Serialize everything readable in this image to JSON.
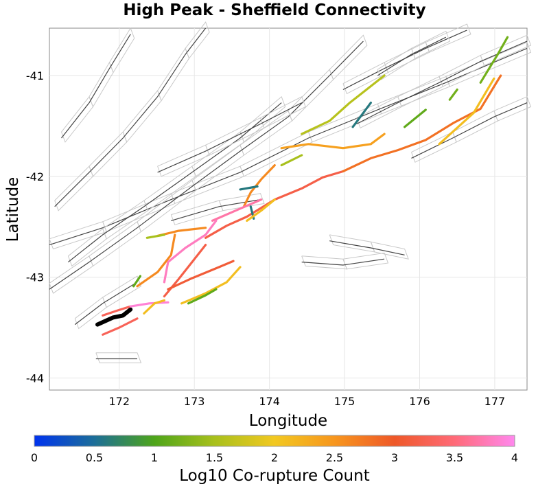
{
  "chart_data": {
    "type": "map",
    "title": "High Peak - Sheffield Connectivity",
    "xlabel": "Longitude",
    "ylabel": "Latitude",
    "xlim": [
      171.07,
      177.43
    ],
    "ylim": [
      -44.12,
      -40.53
    ],
    "xticks": [
      172,
      173,
      174,
      175,
      176,
      177
    ],
    "yticks": [
      -41,
      -42,
      -43,
      -44
    ],
    "xtick_labels": [
      "172",
      "173",
      "174",
      "175",
      "176",
      "177"
    ],
    "ytick_labels": [
      "-41",
      "-42",
      "-43",
      "-44"
    ],
    "grid": true,
    "colorbar": {
      "label": "Log10 Co-rupture Count",
      "range": [
        0,
        4
      ],
      "ticks": [
        "0",
        "0.5",
        "1",
        "1.5",
        "2",
        "2.5",
        "3",
        "3.5",
        "4"
      ],
      "stops": [
        {
          "v": 0,
          "c": "#0033ee"
        },
        {
          "v": 0.5,
          "c": "#1c6e98"
        },
        {
          "v": 1,
          "c": "#4ea51a"
        },
        {
          "v": 1.5,
          "c": "#a8c01c"
        },
        {
          "v": 2,
          "c": "#f2c820"
        },
        {
          "v": 2.5,
          "c": "#f7961e"
        },
        {
          "v": 3,
          "c": "#ee5828"
        },
        {
          "v": 3.5,
          "c": "#ff6a78"
        },
        {
          "v": 4,
          "c": "#ff88ee"
        }
      ],
      "source_color": "#000000"
    },
    "ruptures": [
      {
        "v": "source",
        "pts": [
          [
            171.71,
            -43.47
          ],
          [
            171.92,
            -43.4
          ],
          [
            172.05,
            -43.38
          ],
          [
            172.15,
            -43.32
          ]
        ]
      },
      {
        "v": 3.3,
        "pts": [
          [
            171.78,
            -43.57
          ],
          [
            172.0,
            -43.5
          ],
          [
            172.24,
            -43.41
          ]
        ]
      },
      {
        "v": 3.3,
        "pts": [
          [
            171.78,
            -43.38
          ],
          [
            171.98,
            -43.33
          ],
          [
            172.15,
            -43.29
          ]
        ]
      },
      {
        "v": 3.9,
        "pts": [
          [
            172.15,
            -43.29
          ],
          [
            172.4,
            -43.26
          ],
          [
            172.65,
            -43.25
          ]
        ]
      },
      {
        "v": 3.2,
        "pts": [
          [
            173.15,
            -42.61
          ],
          [
            173.43,
            -42.49
          ],
          [
            173.7,
            -42.4
          ],
          [
            174.07,
            -42.23
          ],
          [
            174.43,
            -42.12
          ],
          [
            174.71,
            -42.01
          ],
          [
            174.98,
            -41.95
          ]
        ]
      },
      {
        "v": 2.6,
        "pts": [
          [
            172.51,
            -42.59
          ],
          [
            172.79,
            -42.54
          ],
          [
            173.15,
            -42.51
          ]
        ]
      },
      {
        "v": 2.8,
        "pts": [
          [
            174.98,
            -41.95
          ],
          [
            175.35,
            -41.82
          ],
          [
            175.71,
            -41.74
          ],
          [
            176.08,
            -41.64
          ],
          [
            176.45,
            -41.47
          ],
          [
            176.81,
            -41.33
          ],
          [
            177.08,
            -41.0
          ]
        ]
      },
      {
        "v": 2.4,
        "pts": [
          [
            174.16,
            -41.72
          ],
          [
            174.52,
            -41.68
          ],
          [
            174.98,
            -41.72
          ],
          [
            175.35,
            -41.68
          ],
          [
            175.53,
            -41.58
          ]
        ]
      },
      {
        "v": 2.1,
        "pts": [
          [
            176.26,
            -41.68
          ],
          [
            176.72,
            -41.37
          ],
          [
            176.99,
            -41.03
          ]
        ]
      },
      {
        "v": 1.6,
        "pts": [
          [
            174.43,
            -41.58
          ],
          [
            174.8,
            -41.45
          ],
          [
            175.07,
            -41.27
          ],
          [
            175.53,
            -41.0
          ]
        ]
      },
      {
        "v": 1.2,
        "pts": [
          [
            176.81,
            -41.07
          ],
          [
            177.04,
            -40.79
          ],
          [
            177.17,
            -40.62
          ]
        ]
      },
      {
        "v": 1.1,
        "pts": [
          [
            175.8,
            -41.51
          ],
          [
            176.08,
            -41.34
          ]
        ]
      },
      {
        "v": 0.6,
        "pts": [
          [
            175.11,
            -41.51
          ],
          [
            175.35,
            -41.27
          ]
        ]
      },
      {
        "v": 2.6,
        "pts": [
          [
            174.07,
            -41.89
          ],
          [
            173.89,
            -42.03
          ],
          [
            173.75,
            -42.16
          ],
          [
            173.66,
            -42.3
          ]
        ]
      },
      {
        "v": 3.7,
        "pts": [
          [
            173.24,
            -42.44
          ],
          [
            173.61,
            -42.32
          ],
          [
            173.89,
            -42.23
          ]
        ]
      },
      {
        "v": 3.2,
        "pts": [
          [
            172.6,
            -43.19
          ],
          [
            172.79,
            -43.02
          ],
          [
            172.97,
            -42.85
          ],
          [
            173.15,
            -42.68
          ]
        ]
      },
      {
        "v": 2.6,
        "pts": [
          [
            172.24,
            -43.09
          ],
          [
            172.51,
            -42.95
          ],
          [
            172.69,
            -42.78
          ],
          [
            172.74,
            -42.58
          ]
        ]
      },
      {
        "v": 3.1,
        "pts": [
          [
            172.65,
            -43.12
          ],
          [
            172.97,
            -43.01
          ],
          [
            173.33,
            -42.9
          ],
          [
            173.52,
            -42.84
          ]
        ]
      },
      {
        "v": 3.8,
        "pts": [
          [
            172.6,
            -43.05
          ],
          [
            172.65,
            -42.85
          ],
          [
            172.88,
            -42.71
          ],
          [
            173.15,
            -42.58
          ],
          [
            173.29,
            -42.44
          ]
        ]
      },
      {
        "v": 2.1,
        "pts": [
          [
            172.83,
            -43.26
          ],
          [
            173.15,
            -43.16
          ],
          [
            173.43,
            -43.05
          ],
          [
            173.61,
            -42.9
          ]
        ]
      },
      {
        "v": 1.1,
        "pts": [
          [
            172.92,
            -43.26
          ],
          [
            173.15,
            -43.18
          ],
          [
            173.29,
            -43.12
          ]
        ]
      },
      {
        "v": 1.1,
        "pts": [
          [
            172.19,
            -43.09
          ],
          [
            172.28,
            -42.99
          ]
        ]
      },
      {
        "v": 1.5,
        "pts": [
          [
            172.37,
            -42.61
          ],
          [
            172.6,
            -42.58
          ]
        ]
      },
      {
        "v": 2.1,
        "pts": [
          [
            172.33,
            -43.36
          ],
          [
            172.47,
            -43.26
          ],
          [
            172.6,
            -43.23
          ]
        ]
      },
      {
        "v": 0.6,
        "pts": [
          [
            173.61,
            -42.13
          ],
          [
            173.84,
            -42.1
          ]
        ]
      },
      {
        "v": 0.6,
        "pts": [
          [
            173.75,
            -42.3
          ],
          [
            173.79,
            -42.42
          ]
        ]
      },
      {
        "v": 2.1,
        "pts": [
          [
            173.7,
            -42.44
          ],
          [
            173.89,
            -42.34
          ],
          [
            174.07,
            -42.23
          ]
        ]
      },
      {
        "v": 1.5,
        "pts": [
          [
            174.16,
            -41.89
          ],
          [
            174.43,
            -41.79
          ]
        ]
      },
      {
        "v": 1.2,
        "pts": [
          [
            176.4,
            -41.24
          ],
          [
            176.5,
            -41.14
          ]
        ]
      }
    ],
    "faults": [
      [
        [
          171.07,
          -42.68
        ],
        [
          171.78,
          -42.51
        ],
        [
          172.69,
          -42.23
        ],
        [
          173.61,
          -41.96
        ],
        [
          174.52,
          -41.62
        ],
        [
          175.44,
          -41.34
        ],
        [
          176.35,
          -41.07
        ],
        [
          177.43,
          -40.73
        ]
      ],
      [
        [
          171.07,
          -43.12
        ],
        [
          171.6,
          -42.85
        ],
        [
          172.24,
          -42.51
        ],
        [
          172.97,
          -42.1
        ],
        [
          173.61,
          -41.75
        ],
        [
          174.25,
          -41.41
        ],
        [
          174.8,
          -41.0
        ],
        [
          175.25,
          -40.66
        ]
      ],
      [
        [
          171.14,
          -42.3
        ],
        [
          171.6,
          -41.96
        ],
        [
          172.05,
          -41.62
        ],
        [
          172.51,
          -41.21
        ],
        [
          172.88,
          -40.79
        ],
        [
          173.15,
          -40.53
        ]
      ],
      [
        [
          171.23,
          -41.62
        ],
        [
          171.6,
          -41.27
        ],
        [
          171.87,
          -40.93
        ],
        [
          172.15,
          -40.59
        ]
      ],
      [
        [
          171.32,
          -42.85
        ],
        [
          171.78,
          -42.58
        ],
        [
          172.33,
          -42.3
        ],
        [
          172.97,
          -41.96
        ],
        [
          173.61,
          -41.62
        ],
        [
          174.16,
          -41.27
        ]
      ],
      [
        [
          174.98,
          -41.14
        ],
        [
          175.53,
          -40.93
        ],
        [
          176.08,
          -40.73
        ],
        [
          176.63,
          -40.55
        ]
      ],
      [
        [
          175.16,
          -41.48
        ],
        [
          175.71,
          -41.27
        ],
        [
          176.26,
          -41.07
        ],
        [
          176.81,
          -40.86
        ],
        [
          177.43,
          -40.66
        ]
      ],
      [
        [
          175.89,
          -41.82
        ],
        [
          176.44,
          -41.62
        ],
        [
          176.99,
          -41.41
        ],
        [
          177.43,
          -41.27
        ]
      ],
      [
        [
          175.44,
          -41.0
        ],
        [
          175.89,
          -40.79
        ],
        [
          176.35,
          -40.62
        ]
      ],
      [
        [
          171.41,
          -43.47
        ],
        [
          171.78,
          -43.26
        ],
        [
          172.24,
          -43.05
        ]
      ],
      [
        [
          174.43,
          -42.85
        ],
        [
          174.98,
          -42.88
        ],
        [
          175.53,
          -42.82
        ]
      ],
      [
        [
          174.8,
          -42.64
        ],
        [
          175.35,
          -42.71
        ],
        [
          175.8,
          -42.78
        ]
      ],
      [
        [
          172.51,
          -41.96
        ],
        [
          173.15,
          -41.75
        ],
        [
          173.88,
          -41.48
        ],
        [
          174.43,
          -41.27
        ]
      ],
      [
        [
          171.69,
          -43.81
        ],
        [
          172.24,
          -43.81
        ]
      ],
      [
        [
          172.69,
          -42.44
        ],
        [
          173.33,
          -42.3
        ],
        [
          173.88,
          -42.23
        ]
      ]
    ]
  }
}
